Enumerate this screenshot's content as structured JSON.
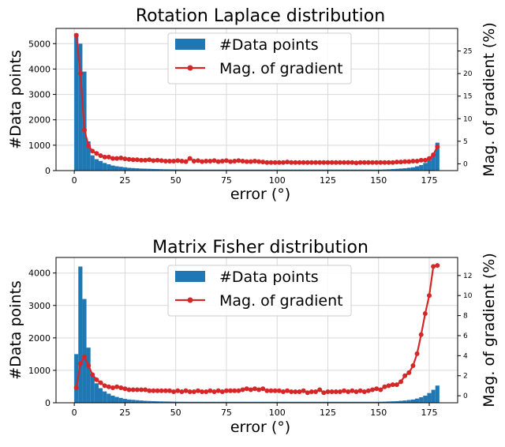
{
  "chart_data": [
    {
      "type": "bar+line",
      "title": "Rotation Laplace distribution",
      "xlabel": "error (°)",
      "ylabel": "#Data points",
      "y2label": "Mag. of gradient (%)",
      "xlim": [
        -9,
        189
      ],
      "ylim": [
        0,
        5600
      ],
      "y2lim": [
        -1.5,
        30
      ],
      "xticks": [
        "0",
        "25",
        "50",
        "75",
        "100",
        "125",
        "150",
        "175"
      ],
      "yticks": [
        "0",
        "1000",
        "2000",
        "3000",
        "4000",
        "5000"
      ],
      "y2ticks": [
        "0",
        "5",
        "10",
        "15",
        "20",
        "25"
      ],
      "legend": {
        "bars": "#Data points",
        "line": "Mag. of gradient",
        "position": "upper-center"
      },
      "series": [
        {
          "name": "#Data points",
          "kind": "bar",
          "bin_width": 2,
          "color": "#1f77b4",
          "x": [
            0,
            2,
            4,
            6,
            8,
            10,
            12,
            14,
            16,
            18,
            20,
            22,
            24,
            26,
            28,
            30,
            32,
            34,
            36,
            38,
            40,
            42,
            44,
            46,
            48,
            50,
            52,
            54,
            56,
            58,
            60,
            62,
            64,
            66,
            68,
            70,
            72,
            74,
            76,
            78,
            80,
            82,
            84,
            86,
            88,
            90,
            92,
            94,
            96,
            98,
            100,
            102,
            104,
            106,
            108,
            110,
            112,
            114,
            116,
            118,
            120,
            122,
            124,
            126,
            128,
            130,
            132,
            134,
            136,
            138,
            140,
            142,
            144,
            146,
            148,
            150,
            152,
            154,
            156,
            158,
            160,
            162,
            164,
            166,
            168,
            170,
            172,
            174,
            176,
            178
          ],
          "values": [
            5400,
            5000,
            3900,
            1150,
            600,
            450,
            380,
            300,
            250,
            200,
            170,
            150,
            130,
            110,
            100,
            90,
            80,
            75,
            70,
            65,
            60,
            55,
            52,
            50,
            48,
            46,
            44,
            42,
            40,
            40,
            40,
            40,
            40,
            40,
            40,
            40,
            40,
            40,
            40,
            40,
            40,
            40,
            40,
            40,
            40,
            40,
            40,
            40,
            40,
            40,
            40,
            40,
            40,
            40,
            40,
            40,
            40,
            40,
            40,
            40,
            40,
            40,
            40,
            40,
            40,
            40,
            40,
            40,
            40,
            40,
            40,
            40,
            40,
            40,
            40,
            40,
            45,
            50,
            60,
            70,
            80,
            90,
            110,
            130,
            170,
            220,
            300,
            400,
            600,
            1100
          ]
        },
        {
          "name": "Mag. of gradient",
          "kind": "line",
          "color": "#d62728",
          "x": [
            1,
            3,
            5,
            7,
            9,
            11,
            13,
            15,
            17,
            19,
            21,
            23,
            25,
            27,
            29,
            31,
            33,
            35,
            37,
            39,
            41,
            43,
            45,
            47,
            49,
            51,
            53,
            55,
            57,
            59,
            61,
            63,
            65,
            67,
            69,
            71,
            73,
            75,
            77,
            79,
            81,
            83,
            85,
            87,
            89,
            91,
            93,
            95,
            97,
            99,
            101,
            103,
            105,
            107,
            109,
            111,
            113,
            115,
            117,
            119,
            121,
            123,
            125,
            127,
            129,
            131,
            133,
            135,
            137,
            139,
            141,
            143,
            145,
            147,
            149,
            151,
            153,
            155,
            157,
            159,
            161,
            163,
            165,
            167,
            169,
            171,
            173,
            175,
            177,
            179
          ],
          "values": [
            28.5,
            20,
            7.5,
            4,
            2.8,
            2.3,
            1.8,
            1.5,
            1.5,
            1.2,
            1.2,
            1.3,
            1.1,
            1.0,
            0.9,
            0.9,
            0.8,
            0.8,
            0.9,
            0.7,
            0.8,
            0.7,
            0.6,
            0.6,
            0.6,
            0.7,
            0.6,
            0.5,
            1.2,
            0.6,
            0.7,
            0.5,
            0.6,
            0.6,
            0.7,
            0.5,
            0.6,
            0.7,
            0.5,
            0.6,
            0.7,
            0.6,
            0.5,
            0.5,
            0.6,
            0.5,
            0.4,
            0.3,
            0.3,
            0.3,
            0.3,
            0.3,
            0.4,
            0.3,
            0.3,
            0.3,
            0.3,
            0.3,
            0.3,
            0.3,
            0.3,
            0.3,
            0.3,
            0.3,
            0.3,
            0.3,
            0.3,
            0.3,
            0.3,
            0.2,
            0.3,
            0.3,
            0.3,
            0.3,
            0.3,
            0.3,
            0.3,
            0.3,
            0.3,
            0.4,
            0.4,
            0.5,
            0.5,
            0.6,
            0.6,
            0.8,
            0.8,
            1.2,
            2.0,
            3.8
          ]
        }
      ]
    },
    {
      "type": "bar+line",
      "title": "Matrix Fisher distribution",
      "xlabel": "error (°)",
      "ylabel": "#Data points",
      "y2label": "Mag. of gradient (%)",
      "xlim": [
        -9,
        189
      ],
      "ylim": [
        0,
        4480
      ],
      "y2lim": [
        -0.7,
        13.8
      ],
      "xticks": [
        "0",
        "25",
        "50",
        "75",
        "100",
        "125",
        "150",
        "175"
      ],
      "yticks": [
        "0",
        "1000",
        "2000",
        "3000",
        "4000"
      ],
      "y2ticks": [
        "0",
        "2",
        "4",
        "6",
        "8",
        "10",
        "12"
      ],
      "legend": {
        "bars": "#Data points",
        "line": "Mag. of gradient",
        "position": "upper-center"
      },
      "series": [
        {
          "name": "#Data points",
          "kind": "bar",
          "bin_width": 2,
          "color": "#1f77b4",
          "x": [
            0,
            2,
            4,
            6,
            8,
            10,
            12,
            14,
            16,
            18,
            20,
            22,
            24,
            26,
            28,
            30,
            32,
            34,
            36,
            38,
            40,
            42,
            44,
            46,
            48,
            50,
            52,
            54,
            56,
            58,
            60,
            62,
            64,
            66,
            68,
            70,
            72,
            74,
            76,
            78,
            80,
            82,
            84,
            86,
            88,
            90,
            92,
            94,
            96,
            98,
            100,
            102,
            104,
            106,
            108,
            110,
            112,
            114,
            116,
            118,
            120,
            122,
            124,
            126,
            128,
            130,
            132,
            134,
            136,
            138,
            140,
            142,
            144,
            146,
            148,
            150,
            152,
            154,
            156,
            158,
            160,
            162,
            164,
            166,
            168,
            170,
            172,
            174,
            176,
            178
          ],
          "values": [
            1500,
            4200,
            3200,
            1700,
            850,
            600,
            450,
            350,
            280,
            220,
            180,
            150,
            120,
            100,
            90,
            80,
            70,
            60,
            55,
            50,
            45,
            42,
            40,
            38,
            35,
            33,
            32,
            31,
            30,
            30,
            30,
            30,
            30,
            30,
            30,
            30,
            30,
            30,
            30,
            30,
            30,
            30,
            30,
            30,
            30,
            30,
            30,
            30,
            30,
            30,
            30,
            30,
            30,
            30,
            30,
            30,
            30,
            30,
            30,
            30,
            30,
            30,
            30,
            30,
            30,
            30,
            30,
            30,
            30,
            30,
            30,
            30,
            30,
            30,
            30,
            32,
            35,
            40,
            45,
            50,
            60,
            70,
            85,
            100,
            130,
            170,
            220,
            300,
            400,
            530
          ]
        },
        {
          "name": "Mag. of gradient",
          "kind": "line",
          "color": "#d62728",
          "x": [
            1,
            3,
            5,
            7,
            9,
            11,
            13,
            15,
            17,
            19,
            21,
            23,
            25,
            27,
            29,
            31,
            33,
            35,
            37,
            39,
            41,
            43,
            45,
            47,
            49,
            51,
            53,
            55,
            57,
            59,
            61,
            63,
            65,
            67,
            69,
            71,
            73,
            75,
            77,
            79,
            81,
            83,
            85,
            87,
            89,
            91,
            93,
            95,
            97,
            99,
            101,
            103,
            105,
            107,
            109,
            111,
            113,
            115,
            117,
            119,
            121,
            123,
            125,
            127,
            129,
            131,
            133,
            135,
            137,
            139,
            141,
            143,
            145,
            147,
            149,
            151,
            153,
            155,
            157,
            159,
            161,
            163,
            165,
            167,
            169,
            171,
            173,
            175,
            177,
            179
          ],
          "values": [
            0.8,
            3.2,
            3.9,
            3.0,
            2.1,
            1.6,
            1.3,
            1.0,
            0.9,
            0.8,
            0.9,
            0.8,
            0.7,
            0.6,
            0.6,
            0.6,
            0.6,
            0.6,
            0.5,
            0.5,
            0.5,
            0.5,
            0.5,
            0.5,
            0.4,
            0.5,
            0.4,
            0.5,
            0.4,
            0.4,
            0.5,
            0.4,
            0.4,
            0.5,
            0.4,
            0.5,
            0.4,
            0.5,
            0.5,
            0.5,
            0.5,
            0.6,
            0.7,
            0.6,
            0.7,
            0.6,
            0.7,
            0.5,
            0.5,
            0.5,
            0.5,
            0.4,
            0.5,
            0.4,
            0.4,
            0.4,
            0.5,
            0.3,
            0.4,
            0.4,
            0.6,
            0.3,
            0.4,
            0.4,
            0.4,
            0.4,
            0.5,
            0.4,
            0.5,
            0.4,
            0.5,
            0.4,
            0.5,
            0.6,
            0.7,
            0.6,
            0.9,
            1.0,
            1.1,
            1.1,
            1.4,
            2.0,
            2.3,
            3.0,
            4.2,
            6.1,
            8.2,
            10.0,
            12.9,
            13.0
          ]
        }
      ]
    }
  ]
}
